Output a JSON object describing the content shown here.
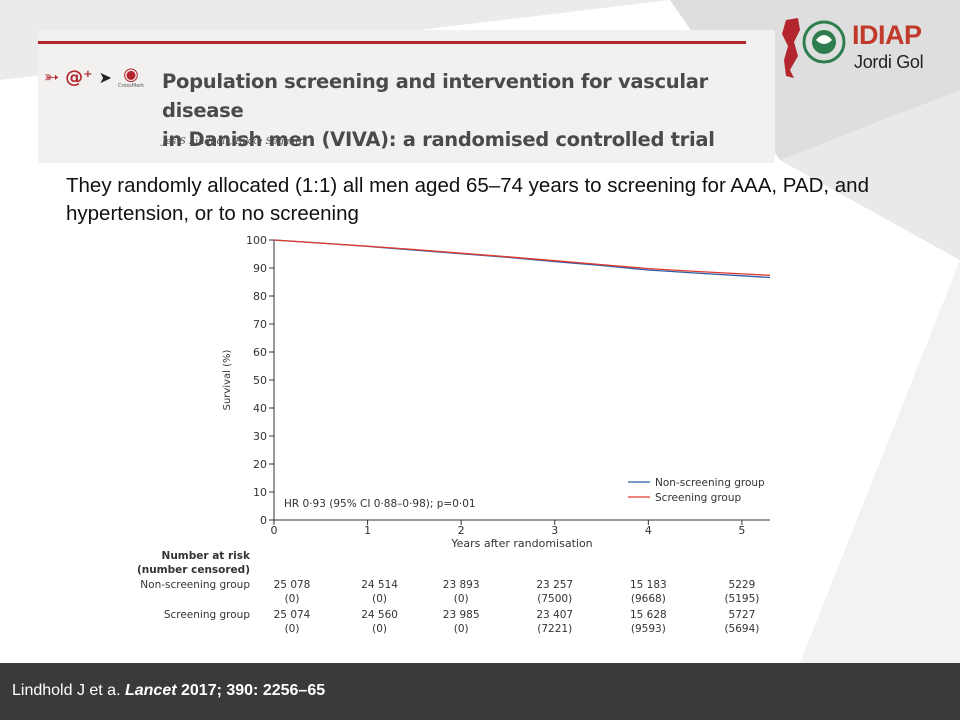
{
  "paper": {
    "title_line1": "Population screening and intervention for vascular disease",
    "title_line2": "in Danish men (VIVA): a randomised controlled trial",
    "authors": "Jes S Lindholt, Rikke Søgaard",
    "crossmark_label": "CrossMark"
  },
  "logo": {
    "line1": "IDIAP",
    "line2": "Jordi Gol"
  },
  "slide": {
    "text": "They randomly allocated (1:1) all men aged 65–74 years to screening for AAA, PAD, and hypertension, or to no screening"
  },
  "footer": {
    "authors": "Lindhold J et a. ",
    "journal": "Lancet",
    "citation": " 2017; 390: 2256–65"
  },
  "colors": {
    "non_screening": "#2b5fa8",
    "screening": "#e23a2e",
    "accent_red": "#b3262d"
  },
  "chart_data": {
    "type": "line",
    "xlabel": "Years after randomisation",
    "ylabel": "Survival (%)",
    "xlim": [
      0,
      5.3
    ],
    "ylim": [
      0,
      100
    ],
    "x_ticks": [
      0,
      1,
      2,
      3,
      4,
      5
    ],
    "y_ticks": [
      0,
      10,
      20,
      30,
      40,
      50,
      60,
      70,
      80,
      90,
      100
    ],
    "annotation": "HR 0·93 (95% CI 0·88–0·98); p=0·01",
    "legend_position": "bottom-right",
    "series": [
      {
        "name": "Non-screening group",
        "color": "#2b5fa8",
        "x": [
          0,
          0.5,
          1,
          1.5,
          2,
          2.5,
          3,
          3.5,
          4,
          4.5,
          5,
          5.3
        ],
        "y": [
          100,
          98.9,
          97.7,
          96.4,
          95.1,
          93.8,
          92.3,
          90.9,
          89.3,
          88.2,
          87.2,
          86.6
        ]
      },
      {
        "name": "Screening group",
        "color": "#e23a2e",
        "x": [
          0,
          0.5,
          1,
          1.5,
          2,
          2.5,
          3,
          3.5,
          4,
          4.5,
          5,
          5.3
        ],
        "y": [
          100,
          98.9,
          97.8,
          96.6,
          95.3,
          94.0,
          92.6,
          91.2,
          89.8,
          88.8,
          87.9,
          87.4
        ]
      }
    ],
    "risk_table": {
      "header1": "Number at risk",
      "header2": "(number censored)",
      "rows": [
        {
          "label": "Non-screening group",
          "at_risk": [
            "25 078",
            "24 514",
            "23 893",
            "23 257",
            "15 183",
            "5229"
          ],
          "censored": [
            "(0)",
            "(0)",
            "(0)",
            "(7500)",
            "(9668)",
            "(5195)"
          ]
        },
        {
          "label": "Screening group",
          "at_risk": [
            "25 074",
            "24 560",
            "23 985",
            "23 407",
            "15 628",
            "5727"
          ],
          "censored": [
            "(0)",
            "(0)",
            "(0)",
            "(7221)",
            "(9593)",
            "(5694)"
          ]
        }
      ]
    }
  }
}
